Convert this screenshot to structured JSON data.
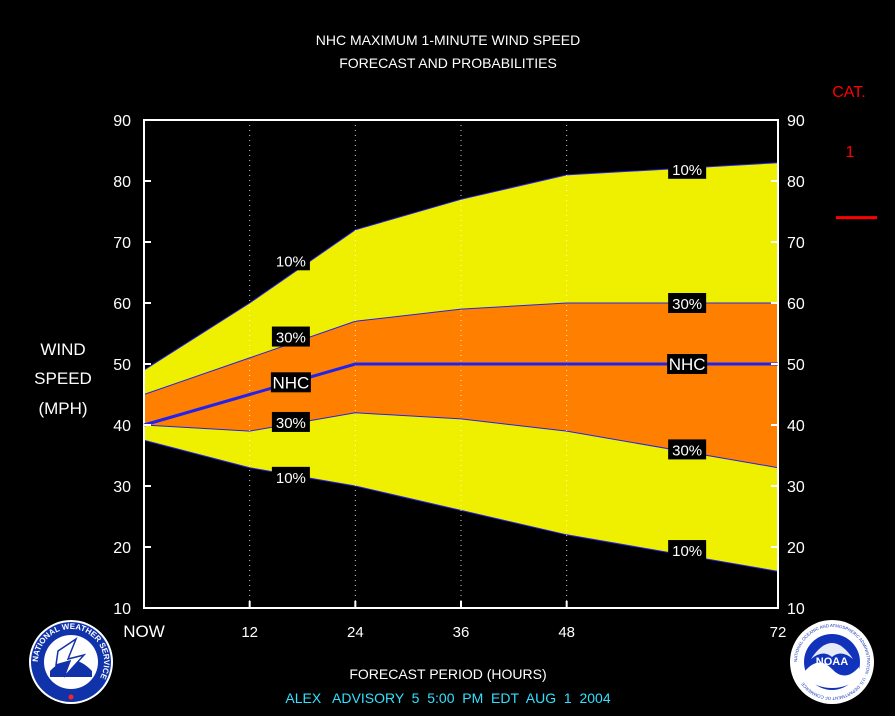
{
  "chart_data": {
    "type": "area",
    "title": "NHC MAXIMUM 1-MINUTE WIND SPEED",
    "subtitle": "FORECAST AND PROBABILITIES",
    "ylabel_lines": [
      "WIND",
      "SPEED",
      "(MPH)"
    ],
    "xlabel": "FORECAST PERIOD (HOURS)",
    "advisory": "ALEX   ADVISORY  5  5:00  PM  EDT  AUG  1  2004",
    "ylim": [
      10,
      90
    ],
    "yticks": [
      10,
      20,
      30,
      40,
      50,
      60,
      70,
      80,
      90
    ],
    "xlim": [
      0,
      72
    ],
    "xticks": [
      {
        "value": 0,
        "label": "NOW"
      },
      {
        "value": 12,
        "label": "12"
      },
      {
        "value": 24,
        "label": "24"
      },
      {
        "value": 36,
        "label": "36"
      },
      {
        "value": 48,
        "label": "48"
      },
      {
        "value": 72,
        "label": "72"
      }
    ],
    "x": [
      0,
      12,
      24,
      36,
      48,
      72
    ],
    "series": [
      {
        "name": "10%",
        "role": "upper-10",
        "values": [
          49,
          60,
          72,
          77,
          81,
          83
        ]
      },
      {
        "name": "30%",
        "role": "upper-30",
        "values": [
          45,
          51,
          57,
          59,
          60,
          60
        ]
      },
      {
        "name": "NHC",
        "role": "forecast",
        "values": [
          40,
          45,
          50,
          50,
          50,
          50
        ]
      },
      {
        "name": "30%",
        "role": "lower-30",
        "values": [
          40,
          39,
          42,
          41,
          39,
          33
        ]
      },
      {
        "name": "10%",
        "role": "lower-10",
        "values": [
          37.5,
          33,
          30,
          26,
          22,
          16
        ]
      }
    ],
    "labels": [
      {
        "text": "10%",
        "x": 16,
        "y": 67
      },
      {
        "text": "30%",
        "x": 16,
        "y": 54.5
      },
      {
        "text": "NHC",
        "x": 16,
        "y": 47
      },
      {
        "text": "30%",
        "x": 16,
        "y": 40.5
      },
      {
        "text": "10%",
        "x": 16,
        "y": 31.5
      },
      {
        "text": "10%",
        "x": 61,
        "y": 82
      },
      {
        "text": "30%",
        "x": 61,
        "y": 60
      },
      {
        "text": "NHC",
        "x": 61,
        "y": 50
      },
      {
        "text": "30%",
        "x": 61,
        "y": 36
      },
      {
        "text": "10%",
        "x": 61,
        "y": 19.5
      }
    ],
    "category": {
      "title": "CAT.",
      "value": "1",
      "threshold": 74
    },
    "colors": {
      "outer_band": "#eef000",
      "inner_band": "#ff8000",
      "forecast_line": "#2222ee",
      "category_text": "#ff0000",
      "advisory_text": "#33e0ff",
      "plot_border": "#ffffff"
    },
    "grid": "dotted vertical at 12-hour ticks"
  },
  "logos": {
    "left": "NATIONAL WEATHER SERVICE",
    "right_center": "NOAA",
    "right_ring": "NATIONAL OCEANIC AND ATMOSPHERIC ADMINISTRATION · U.S. DEPARTMENT OF COMMERCE"
  }
}
